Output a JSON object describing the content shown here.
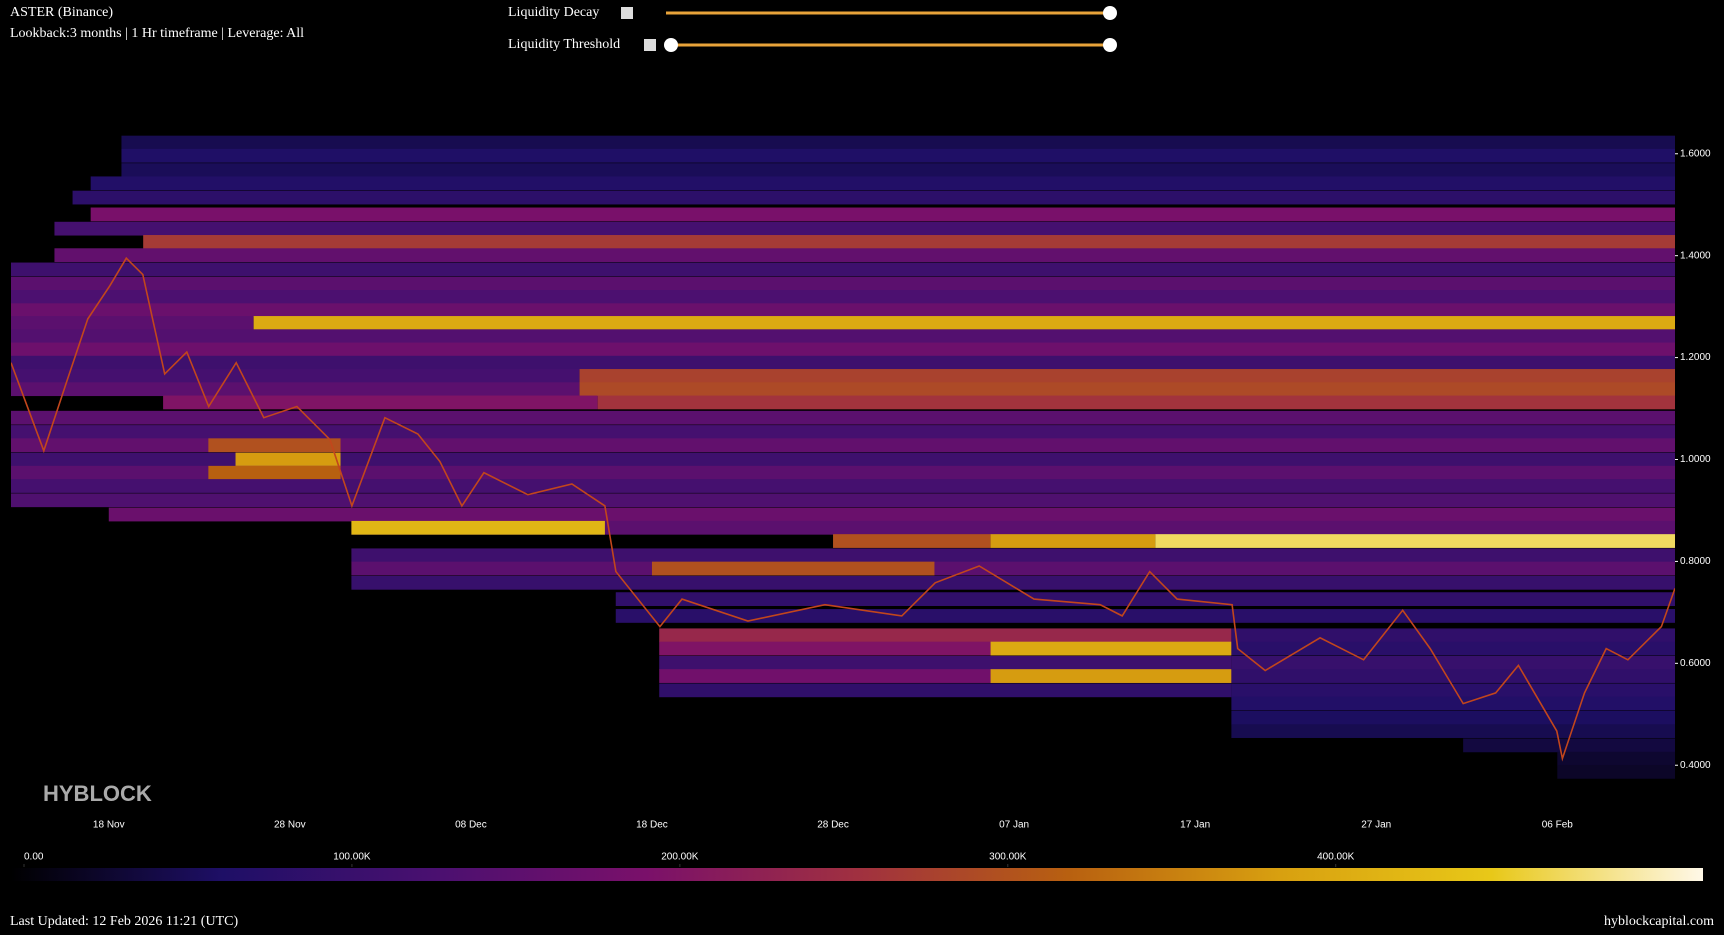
{
  "header": {
    "title": "ASTER (Binance)",
    "subtitle": "Lookback:3 months | 1 Hr timeframe | Leverage: All",
    "brand": "HYBLOCK"
  },
  "controls": [
    {
      "label": "Liquidity Decay"
    },
    {
      "label": "Liquidity Threshold"
    }
  ],
  "chart_data": {
    "type": "heatmap",
    "xlim": [
      -5.4,
      86.5
    ],
    "xticks": [
      {
        "value": 0,
        "label": "18 Nov"
      },
      {
        "value": 10,
        "label": "28 Nov"
      },
      {
        "value": 20,
        "label": "08 Dec"
      },
      {
        "value": 30,
        "label": "18 Dec"
      },
      {
        "value": 40,
        "label": "28 Dec"
      },
      {
        "value": 50,
        "label": "07 Jan"
      },
      {
        "value": 60,
        "label": "17 Jan"
      },
      {
        "value": 70,
        "label": "27 Jan"
      },
      {
        "value": 80,
        "label": "06 Feb"
      }
    ],
    "ylim": [
      0.373,
      1.627
    ],
    "yticks": [
      {
        "value": 0.4,
        "label": "0.4000"
      },
      {
        "value": 0.6,
        "label": "0.6000"
      },
      {
        "value": 0.8,
        "label": "0.8000"
      },
      {
        "value": 1.0,
        "label": "1.0000"
      },
      {
        "value": 1.2,
        "label": "1.2000"
      },
      {
        "value": 1.4,
        "label": "1.4000"
      },
      {
        "value": 1.6,
        "label": "1.6000"
      }
    ],
    "row_height": 0.027,
    "colorscale": [
      "#000000",
      "#1e0f66",
      "#4a1070",
      "#7a106a",
      "#a03040",
      "#b86010",
      "#d8a010",
      "#e8c818",
      "#fff8e8"
    ],
    "colorbar": {
      "lim": [
        0,
        512000
      ],
      "ticks": [
        {
          "value": 0,
          "label": "0.00"
        },
        {
          "value": 100000,
          "label": "100.00K"
        },
        {
          "value": 200000,
          "label": "200.00K"
        },
        {
          "value": 300000,
          "label": "300.00K"
        },
        {
          "value": 400000,
          "label": "400.00K"
        }
      ]
    },
    "rows": [
      {
        "price": 1.622,
        "start": 0.7,
        "end": 86.5,
        "value": 50000
      },
      {
        "price": 1.596,
        "start": 0.7,
        "end": 86.5,
        "value": 65000
      },
      {
        "price": 1.568,
        "start": 0.7,
        "end": 86.5,
        "value": 55000
      },
      {
        "price": 1.542,
        "start": -1,
        "end": 86.5,
        "value": 70000
      },
      {
        "price": 1.514,
        "start": -2,
        "end": 86.5,
        "value": 85000
      },
      {
        "price": 1.481,
        "start": -1,
        "end": 86.5,
        "value": 190000
      },
      {
        "price": 1.453,
        "start": -3,
        "end": 86.5,
        "value": 120000
      },
      {
        "price": 1.427,
        "start": 1.9,
        "end": 86.5,
        "value": 270000
      },
      {
        "price": 1.401,
        "start": -3,
        "end": 86.5,
        "value": 160000
      },
      {
        "price": 1.373,
        "start": -5.4,
        "end": 86.5,
        "value": 110000
      },
      {
        "price": 1.345,
        "start": -5.4,
        "end": 86.5,
        "value": 150000
      },
      {
        "price": 1.319,
        "start": -5.4,
        "end": 86.5,
        "value": 130000
      },
      {
        "price": 1.293,
        "start": -5.4,
        "end": 86.5,
        "value": 170000
      },
      {
        "price": 1.268,
        "start": -5.4,
        "end": 8,
        "value": 150000
      },
      {
        "price": 1.268,
        "start": 8,
        "end": 86.5,
        "value": 400000
      },
      {
        "price": 1.242,
        "start": -5.4,
        "end": 86.5,
        "value": 140000
      },
      {
        "price": 1.216,
        "start": -5.4,
        "end": 86.5,
        "value": 175000
      },
      {
        "price": 1.19,
        "start": -5.4,
        "end": 86.5,
        "value": 110000
      },
      {
        "price": 1.164,
        "start": -5.4,
        "end": 26,
        "value": 120000
      },
      {
        "price": 1.164,
        "start": 26,
        "end": 86.5,
        "value": 280000
      },
      {
        "price": 1.138,
        "start": -5.4,
        "end": 26,
        "value": 150000
      },
      {
        "price": 1.138,
        "start": 26,
        "end": 86.5,
        "value": 290000
      },
      {
        "price": 1.112,
        "start": 3,
        "end": 27,
        "value": 200000
      },
      {
        "price": 1.112,
        "start": 27,
        "end": 86.5,
        "value": 260000
      },
      {
        "price": 1.082,
        "start": -5.4,
        "end": 86.5,
        "value": 150000
      },
      {
        "price": 1.054,
        "start": -5.4,
        "end": 86.5,
        "value": 120000
      },
      {
        "price": 1.028,
        "start": -5.4,
        "end": 86.5,
        "value": 160000
      },
      {
        "price": 1.028,
        "start": 5.5,
        "end": 12.8,
        "value": 300000
      },
      {
        "price": 1.0,
        "start": -5.4,
        "end": 86.5,
        "value": 110000
      },
      {
        "price": 1.0,
        "start": 7,
        "end": 12.8,
        "value": 380000
      },
      {
        "price": 0.974,
        "start": -5.4,
        "end": 86.5,
        "value": 150000
      },
      {
        "price": 0.974,
        "start": 5.5,
        "end": 12.8,
        "value": 320000
      },
      {
        "price": 0.948,
        "start": -5.4,
        "end": 86.5,
        "value": 120000
      },
      {
        "price": 0.92,
        "start": -5.4,
        "end": 86.5,
        "value": 135000
      },
      {
        "price": 0.892,
        "start": 0,
        "end": 86.5,
        "value": 170000
      },
      {
        "price": 0.866,
        "start": 13.4,
        "end": 86.5,
        "value": 150000
      },
      {
        "price": 0.866,
        "start": 13.4,
        "end": 27.4,
        "value": 420000
      },
      {
        "price": 0.84,
        "start": 40,
        "end": 48.7,
        "value": 300000
      },
      {
        "price": 0.84,
        "start": 48.7,
        "end": 57.8,
        "value": 380000
      },
      {
        "price": 0.84,
        "start": 57.8,
        "end": 86.5,
        "value": 470000
      },
      {
        "price": 0.812,
        "start": 13.4,
        "end": 86.5,
        "value": 110000
      },
      {
        "price": 0.786,
        "start": 13.4,
        "end": 86.5,
        "value": 150000
      },
      {
        "price": 0.786,
        "start": 30,
        "end": 45.6,
        "value": 300000
      },
      {
        "price": 0.758,
        "start": 13.4,
        "end": 86.5,
        "value": 100000
      },
      {
        "price": 0.726,
        "start": 28,
        "end": 86.5,
        "value": 90000
      },
      {
        "price": 0.693,
        "start": 28,
        "end": 86.5,
        "value": 80000
      },
      {
        "price": 0.655,
        "start": 30.4,
        "end": 62,
        "value": 240000
      },
      {
        "price": 0.629,
        "start": 30.4,
        "end": 62,
        "value": 200000
      },
      {
        "price": 0.629,
        "start": 48.7,
        "end": 62,
        "value": 400000
      },
      {
        "price": 0.601,
        "start": 30.4,
        "end": 62,
        "value": 110000
      },
      {
        "price": 0.575,
        "start": 30.4,
        "end": 62,
        "value": 180000
      },
      {
        "price": 0.575,
        "start": 48.7,
        "end": 62,
        "value": 380000
      },
      {
        "price": 0.547,
        "start": 30.4,
        "end": 62,
        "value": 90000
      },
      {
        "price": 0.655,
        "start": 62,
        "end": 86.5,
        "value": 90000
      },
      {
        "price": 0.629,
        "start": 62,
        "end": 86.5,
        "value": 80000
      },
      {
        "price": 0.601,
        "start": 62,
        "end": 86.5,
        "value": 100000
      },
      {
        "price": 0.575,
        "start": 62,
        "end": 86.5,
        "value": 90000
      },
      {
        "price": 0.547,
        "start": 62,
        "end": 86.5,
        "value": 80000
      },
      {
        "price": 0.521,
        "start": 62,
        "end": 86.5,
        "value": 70000
      },
      {
        "price": 0.493,
        "start": 62,
        "end": 86.5,
        "value": 60000
      },
      {
        "price": 0.467,
        "start": 62,
        "end": 86.5,
        "value": 50000
      },
      {
        "price": 0.439,
        "start": 74.8,
        "end": 86.5,
        "value": 40000
      },
      {
        "price": 0.413,
        "start": 80,
        "end": 86.5,
        "value": 30000
      },
      {
        "price": 0.387,
        "start": 80,
        "end": 86.5,
        "value": 25000
      }
    ],
    "price": {
      "color": "#c2461c",
      "x": [
        -5.4,
        -3.59,
        -2.38,
        -1.16,
        0.06,
        0.97,
        1.88,
        3.09,
        4.31,
        5.52,
        7.04,
        8.56,
        10.39,
        12.21,
        13.43,
        15.25,
        17.07,
        18.29,
        19.5,
        20.72,
        23.15,
        25.58,
        27.4,
        28.01,
        30.44,
        31.66,
        35.3,
        39.55,
        43.8,
        45.64,
        48.07,
        51.1,
        54.75,
        55.97,
        57.49,
        59.0,
        62.04,
        62.35,
        63.87,
        66.9,
        69.3,
        71.46,
        72.98,
        74.8,
        76.6,
        77.85,
        79.97,
        80.28,
        81.5,
        82.7,
        83.9,
        85.75,
        86.5
      ],
      "values": [
        1.19,
        1.017,
        1.147,
        1.276,
        1.341,
        1.395,
        1.363,
        1.168,
        1.211,
        1.104,
        1.19,
        1.082,
        1.104,
        1.039,
        0.909,
        1.082,
        1.05,
        0.996,
        0.909,
        0.974,
        0.931,
        0.952,
        0.909,
        0.78,
        0.672,
        0.726,
        0.683,
        0.715,
        0.693,
        0.758,
        0.791,
        0.726,
        0.715,
        0.693,
        0.78,
        0.726,
        0.715,
        0.629,
        0.586,
        0.65,
        0.607,
        0.704,
        0.629,
        0.521,
        0.542,
        0.596,
        0.467,
        0.413,
        0.542,
        0.629,
        0.607,
        0.672,
        0.747
      ]
    }
  },
  "footer": {
    "updated": "Last Updated: 12 Feb 2026 11:21 (UTC)",
    "site": "hyblockcapital.com"
  }
}
